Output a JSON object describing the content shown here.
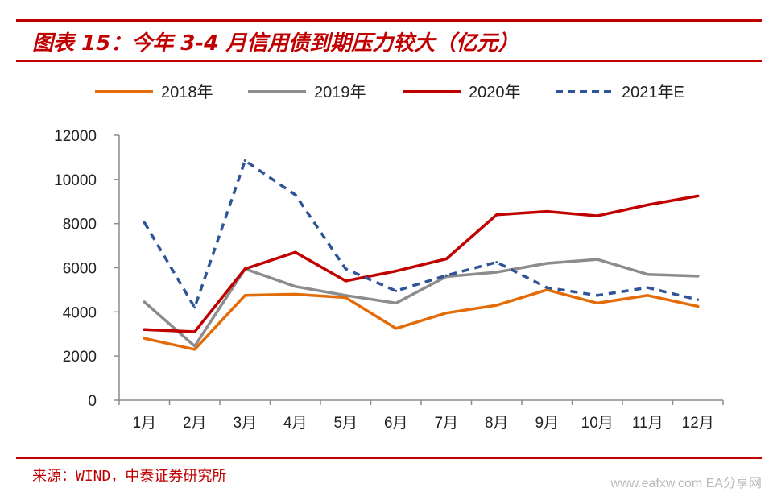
{
  "header": {
    "title": "图表 15：今年 3-4 月信用债到期压力较大（亿元）"
  },
  "footer": {
    "source": "来源：WIND，中泰证券研究所",
    "watermark": "www.eafxw.com  EA分享网"
  },
  "chart_data": {
    "type": "line",
    "title": "",
    "xlabel": "",
    "ylabel": "",
    "ylim": [
      0,
      12000
    ],
    "yticks": [
      0,
      2000,
      4000,
      6000,
      8000,
      10000,
      12000
    ],
    "grid": false,
    "legend_position": "top",
    "categories": [
      "1月",
      "2月",
      "3月",
      "4月",
      "5月",
      "6月",
      "7月",
      "8月",
      "9月",
      "10月",
      "11月",
      "12月"
    ],
    "series": [
      {
        "name": "2018年",
        "color": "#e36c09",
        "dashed": false,
        "values": [
          2800,
          2300,
          4750,
          4800,
          4650,
          3250,
          3950,
          4300,
          5000,
          4400,
          4750,
          4250
        ]
      },
      {
        "name": "2019年",
        "color": "#8c8c8c",
        "dashed": false,
        "values": [
          4450,
          2450,
          5950,
          5150,
          4750,
          4400,
          5600,
          5800,
          6200,
          6380,
          5700,
          5620
        ]
      },
      {
        "name": "2020年",
        "color": "#c00000",
        "dashed": false,
        "values": [
          3200,
          3100,
          5950,
          6700,
          5400,
          5850,
          6400,
          8400,
          8550,
          8350,
          8850,
          9250
        ]
      },
      {
        "name": "2021年E",
        "color": "#2f5597",
        "dashed": true,
        "values": [
          8050,
          4200,
          10850,
          9300,
          5950,
          4950,
          5650,
          6250,
          5100,
          4750,
          5100,
          4550
        ]
      }
    ]
  }
}
